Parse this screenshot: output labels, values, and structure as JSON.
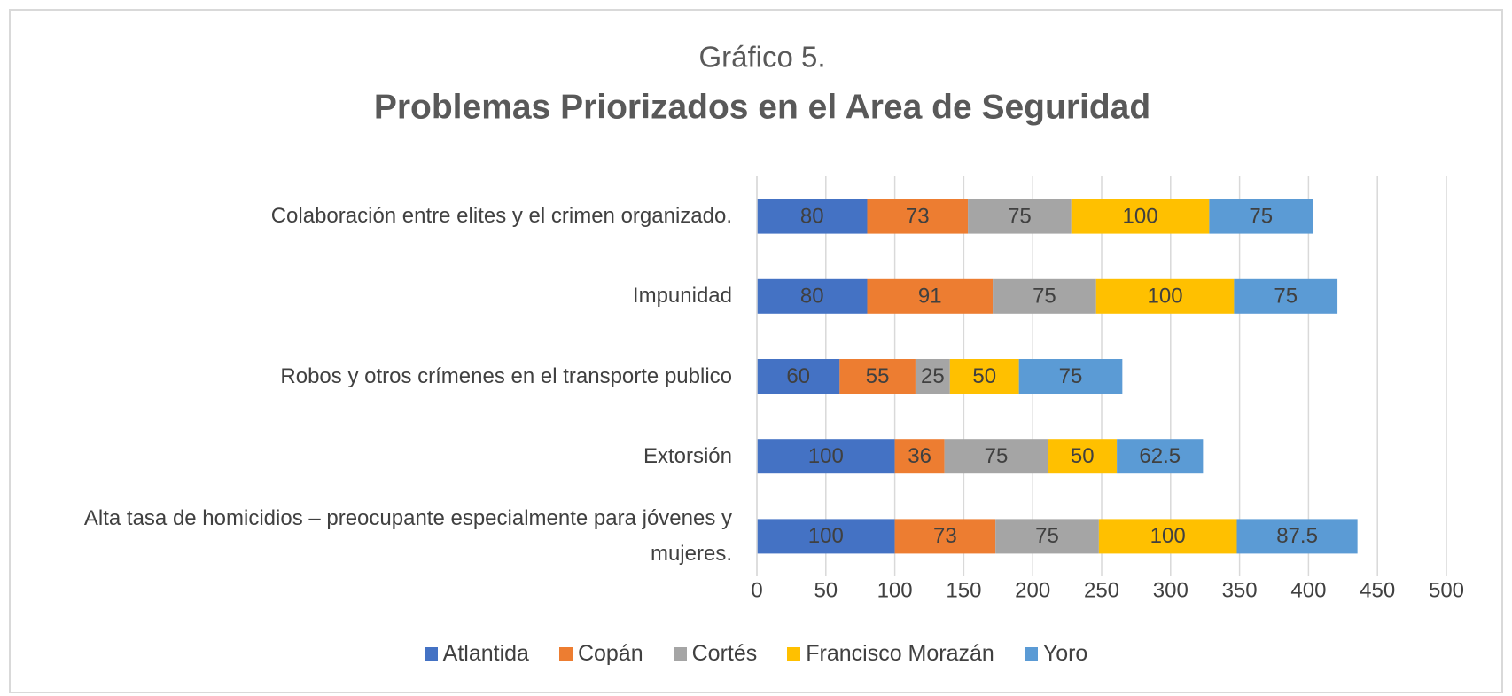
{
  "chart_data": {
    "type": "stacked-barh",
    "title": "Gráfico 5.",
    "subtitle": "Problemas Priorizados en el Area de Seguridad",
    "categories": [
      "Colaboración entre elites y el crimen organizado.",
      "Impunidad",
      "Robos y otros crímenes en el transporte publico",
      "Extorsión",
      "Alta tasa de homicidios – preocupante especialmente para jóvenes y mujeres."
    ],
    "series": [
      {
        "name": "Atlantida",
        "color": "#4472c4",
        "values": [
          80,
          80,
          60,
          100,
          100
        ]
      },
      {
        "name": "Copán",
        "color": "#ed7d31",
        "values": [
          73,
          91,
          55,
          36,
          73
        ]
      },
      {
        "name": "Cortés",
        "color": "#a5a5a5",
        "values": [
          75,
          75,
          25,
          75,
          75
        ]
      },
      {
        "name": "Francisco Morazán",
        "color": "#ffc000",
        "values": [
          100,
          100,
          50,
          50,
          100
        ]
      },
      {
        "name": "Yoro",
        "color": "#5b9bd5",
        "values": [
          75,
          75,
          75,
          62.5,
          87.5
        ]
      }
    ],
    "xlim": [
      0,
      500
    ],
    "xticks": [
      0,
      50,
      100,
      150,
      200,
      250,
      300,
      350,
      400,
      450,
      500
    ],
    "grid": true,
    "legend": "bottom"
  }
}
